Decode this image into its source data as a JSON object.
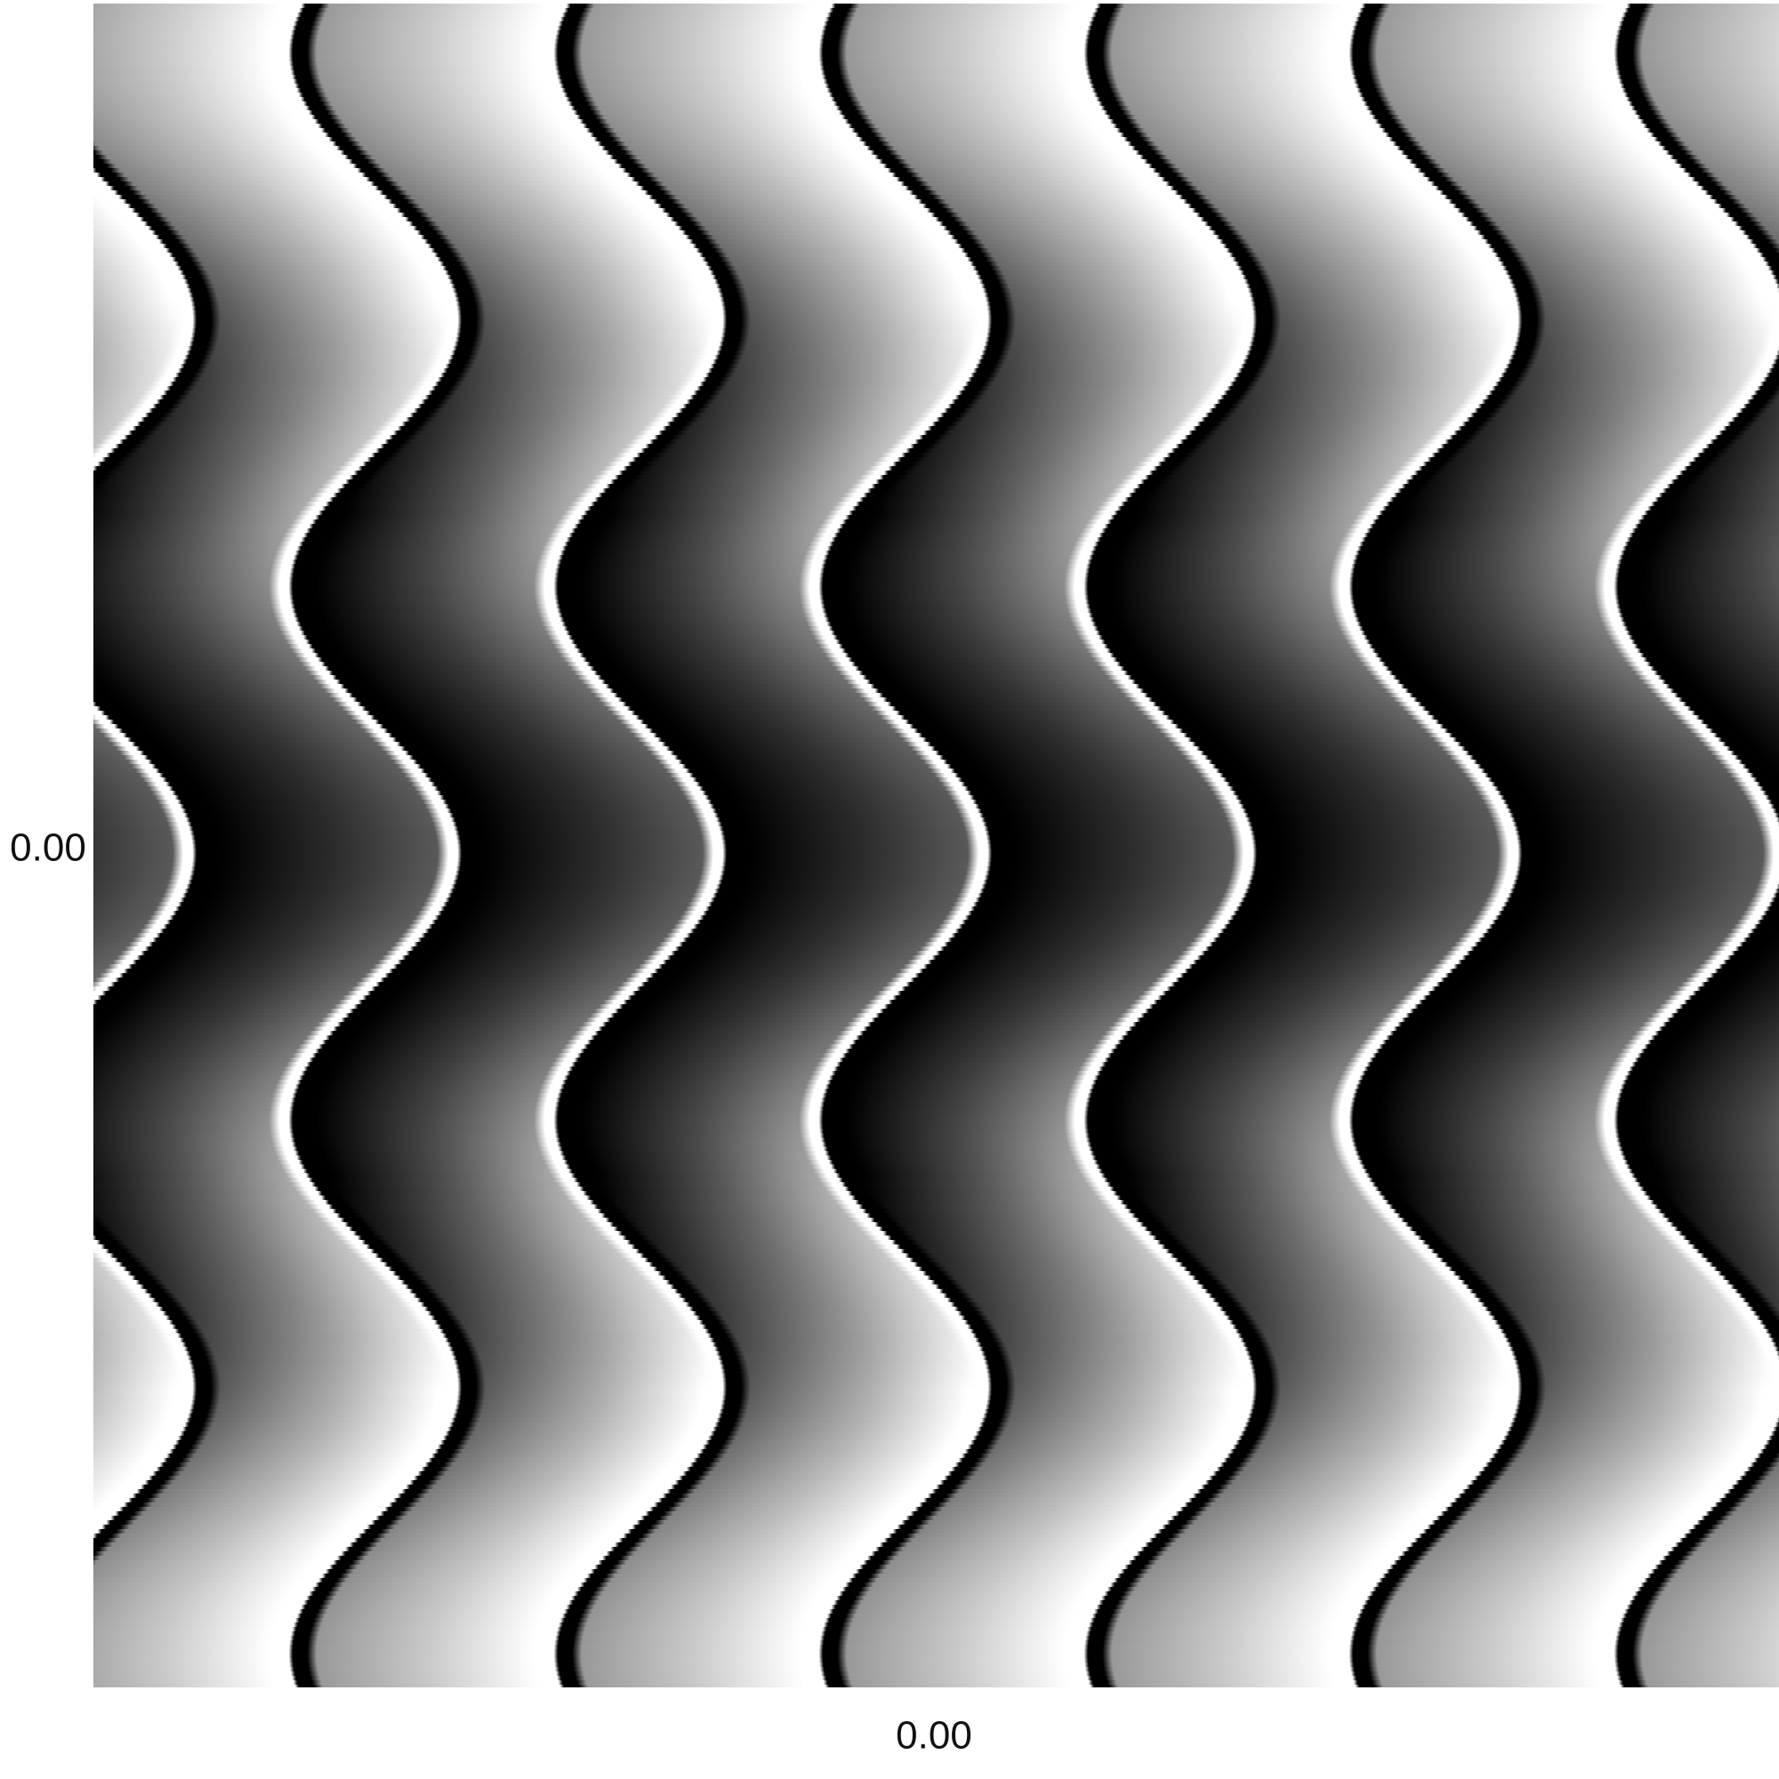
{
  "labels": {
    "y_axis": "0.00",
    "x_axis": "0.00"
  }
}
